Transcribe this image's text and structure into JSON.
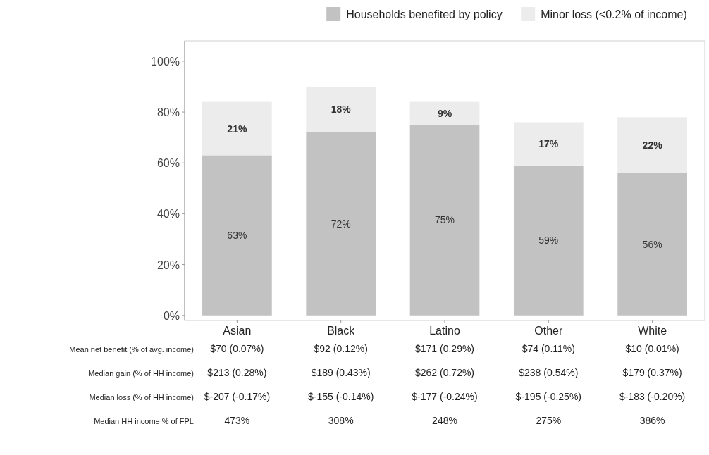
{
  "chart_data": {
    "type": "bar",
    "stacked": true,
    "categories": [
      "Asian",
      "Black",
      "Latino",
      "Other",
      "White"
    ],
    "series": [
      {
        "name": "Households benefited by policy",
        "color": "#c2c2c2",
        "values": [
          63,
          72,
          75,
          59,
          56
        ],
        "value_labels": [
          "63%",
          "72%",
          "75%",
          "59%",
          "56%"
        ]
      },
      {
        "name": "Minor loss (<0.2% of income)",
        "color": "#ececec",
        "values": [
          21,
          18,
          9,
          17,
          22
        ],
        "value_labels": [
          "21%",
          "18%",
          "9%",
          "17%",
          "22%"
        ]
      }
    ],
    "ylim": [
      -2,
      108
    ],
    "yticks": [
      {
        "value": 0,
        "label": "0%"
      },
      {
        "value": 20,
        "label": "20%"
      },
      {
        "value": 40,
        "label": "40%"
      },
      {
        "value": 60,
        "label": "60%"
      },
      {
        "value": 80,
        "label": "80%"
      },
      {
        "value": 100,
        "label": "100%"
      }
    ],
    "grid": false,
    "legend": "top right",
    "annotations": [
      "Mean net benefit (% of avg. income)",
      "$70 (0.07%)",
      "$92 (0.12%)",
      "$171 (0.29%)",
      "$74 (0.11%)",
      "$10 (0.01%)",
      "Median gain (% of HH income)",
      "$213 (0.28%)",
      "$189 (0.43%)",
      "$262 (0.72%)",
      "$238 (0.54%)",
      "$179 (0.37%)",
      "Median loss (% of HH income)",
      "$-207 (-0.17%)",
      "$-155 (-0.14%)",
      "$-177 (-0.24%)",
      "$-195 (-0.25%)",
      "$-183 (-0.20%)",
      "Median HH income % of FPL",
      "473%",
      "308%",
      "248%",
      "275%",
      "386%"
    ]
  }
}
